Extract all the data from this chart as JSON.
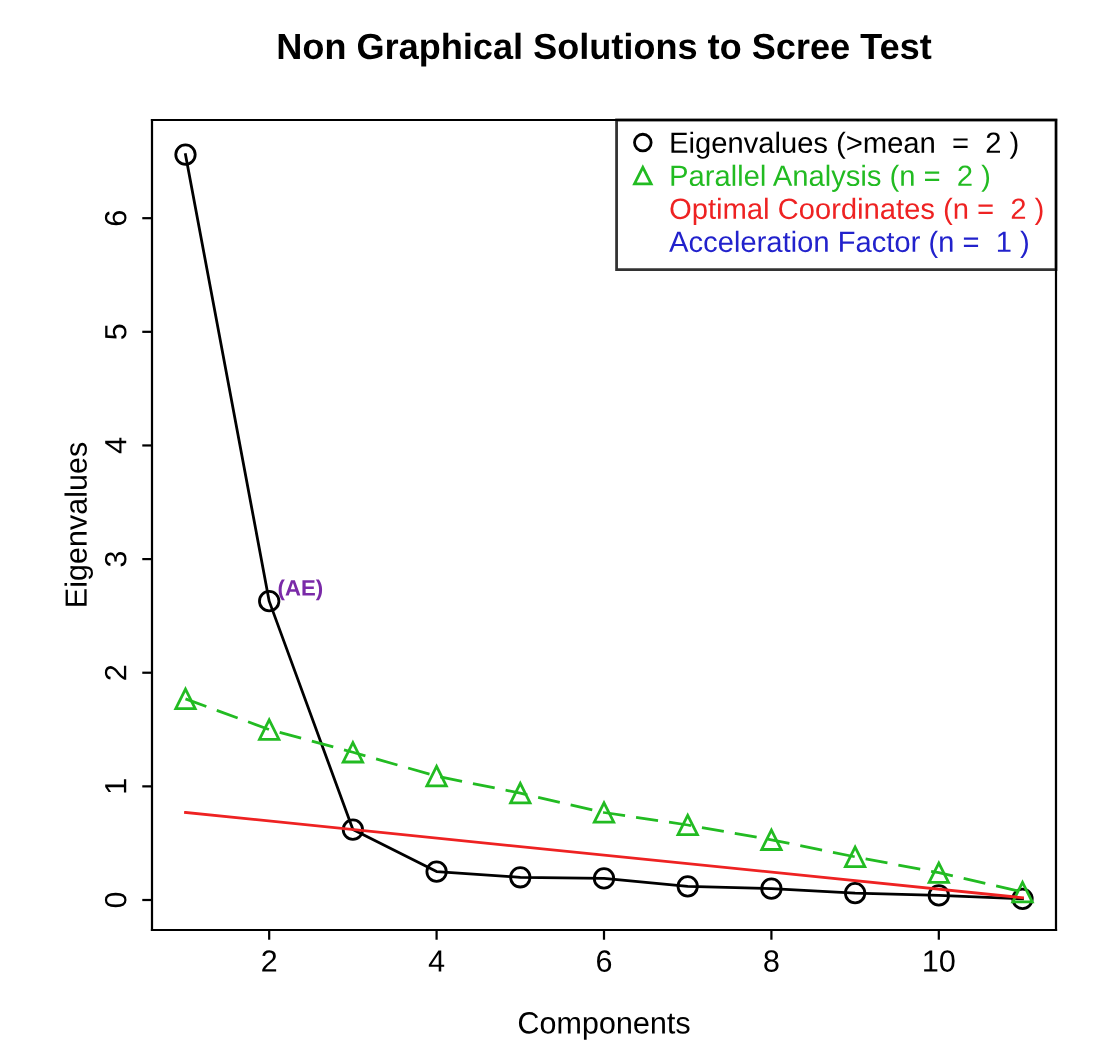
{
  "chart_data": {
    "type": "line",
    "title": "Non Graphical Solutions to Scree Test",
    "xlabel": "Components",
    "ylabel": "Eigenvalues",
    "x": [
      1,
      2,
      3,
      4,
      5,
      6,
      7,
      8,
      9,
      10,
      11
    ],
    "series": [
      {
        "name": "Eigenvalues (>mean  =  2 )",
        "color": "#000000",
        "marker": "circle",
        "line_style": "solid",
        "values": [
          6.56,
          2.63,
          0.62,
          0.25,
          0.2,
          0.19,
          0.12,
          0.1,
          0.06,
          0.04,
          0.01
        ]
      },
      {
        "name": "Parallel Analysis (n =  2 )",
        "color": "#22bb22",
        "marker": "triangle",
        "line_style": "dashed",
        "values": [
          1.77,
          1.5,
          1.3,
          1.09,
          0.94,
          0.77,
          0.66,
          0.53,
          0.38,
          0.24,
          0.07
        ]
      },
      {
        "name": "Optimal Coordinates (n =  2 )",
        "color": "#ee2222",
        "marker": "none",
        "line_style": "solid",
        "x": [
          1,
          11
        ],
        "values": [
          0.77,
          0.02
        ]
      },
      {
        "name": "Acceleration Factor (n =  1 )",
        "color": "#2222cc",
        "marker": "none",
        "line_style": "solid",
        "values": [
          null,
          null,
          null,
          null,
          null,
          null,
          null,
          null,
          null,
          null,
          null
        ]
      }
    ],
    "annotations": [
      {
        "text": "(AE)",
        "x": 2,
        "y": 2.63
      }
    ],
    "xlim": [
      0.6,
      11.4
    ],
    "ylim": [
      -0.264,
      6.864
    ],
    "xticks": [
      2,
      4,
      6,
      8,
      10
    ],
    "yticks": [
      0,
      1,
      2,
      3,
      4,
      5,
      6
    ],
    "grid": false,
    "legend": "top right"
  }
}
